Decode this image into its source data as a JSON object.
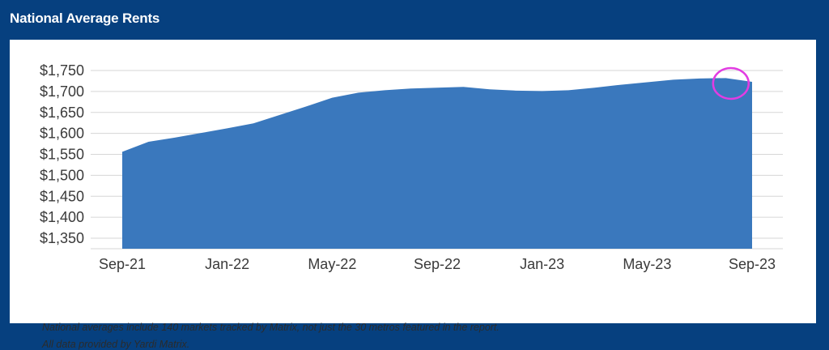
{
  "title": "National Average Rents",
  "footnotes": [
    "National averages include 140 markets tracked by Matrix, not just the 30 metros featured in the report.",
    "All data provided by Yardi Matrix."
  ],
  "colors": {
    "frame": "#06407f",
    "area_fill": "#3a78bd",
    "grid": "#d6d6d6",
    "highlight_circle": "#e23ce2"
  },
  "chart_data": {
    "type": "area",
    "title": "National Average Rents",
    "xlabel": "",
    "ylabel": "",
    "ylim": [
      1325,
      1750
    ],
    "yticks": [
      "$1,750",
      "$1,700",
      "$1,650",
      "$1,600",
      "$1,550",
      "$1,500",
      "$1,450",
      "$1,400",
      "$1,350"
    ],
    "ytick_values": [
      1750,
      1700,
      1650,
      1600,
      1550,
      1500,
      1450,
      1400,
      1350
    ],
    "xticks": [
      "Sep-21",
      "Jan-22",
      "May-22",
      "Sep-22",
      "Jan-23",
      "May-23",
      "Sep-23"
    ],
    "grid": true,
    "legend": "none",
    "x": [
      "Sep-21",
      "Oct-21",
      "Nov-21",
      "Dec-21",
      "Jan-22",
      "Feb-22",
      "Mar-22",
      "Apr-22",
      "May-22",
      "Jun-22",
      "Jul-22",
      "Aug-22",
      "Sep-22",
      "Oct-22",
      "Nov-22",
      "Dec-22",
      "Jan-23",
      "Feb-23",
      "Mar-23",
      "Apr-23",
      "May-23",
      "Jun-23",
      "Jul-23",
      "Aug-23",
      "Sep-23"
    ],
    "series": [
      {
        "values": [
          1556,
          1580,
          1590,
          1601,
          1612,
          1624,
          1644,
          1664,
          1685,
          1697,
          1703,
          1707,
          1709,
          1711,
          1705,
          1702,
          1701,
          1703,
          1709,
          1716,
          1722,
          1728,
          1731,
          1732,
          1723
        ]
      }
    ],
    "annotation": "highlight circle around Aug-23 to Sep-23"
  }
}
